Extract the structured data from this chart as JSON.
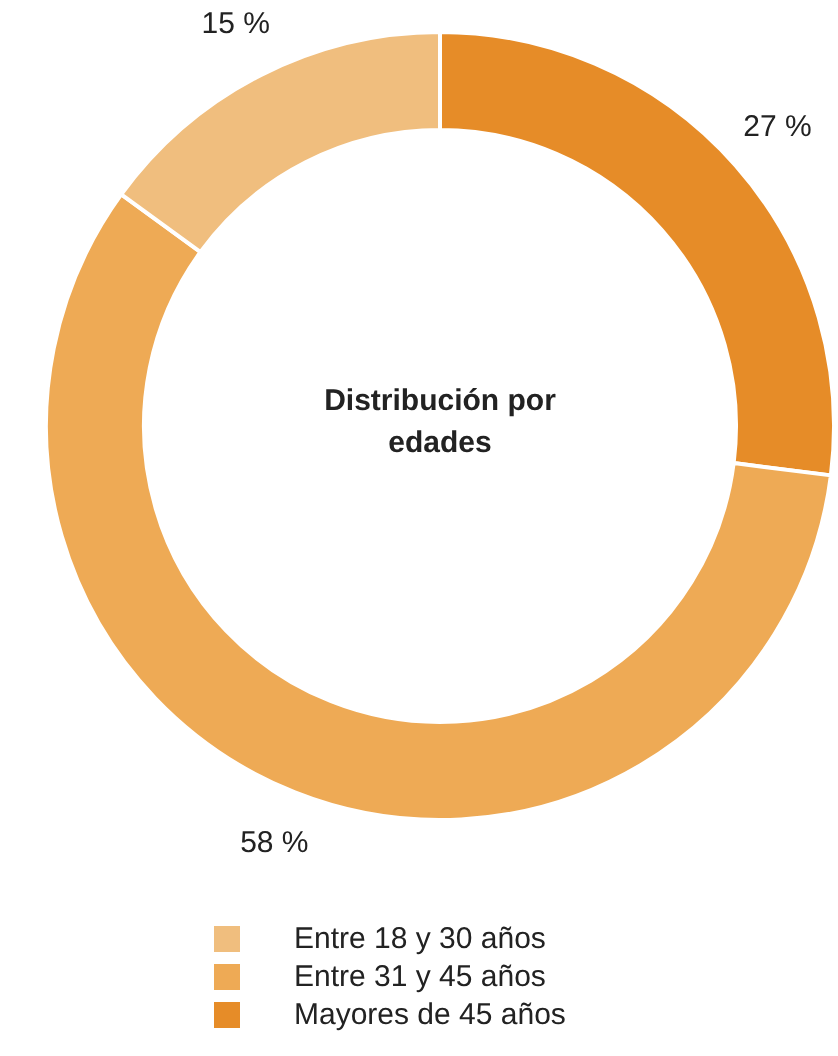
{
  "chart_data": {
    "type": "donut",
    "title": "Distribución por edades",
    "categories": [
      "Entre 18 y 30 años",
      "Entre 31 y 45 años",
      "Mayores de 45 años"
    ],
    "values": [
      15,
      58,
      27
    ],
    "value_labels": [
      "15 %",
      "58 %",
      "27 %"
    ],
    "colors": [
      "#f0be7e",
      "#eeaa55",
      "#e68c28"
    ],
    "legend": "bottom"
  }
}
